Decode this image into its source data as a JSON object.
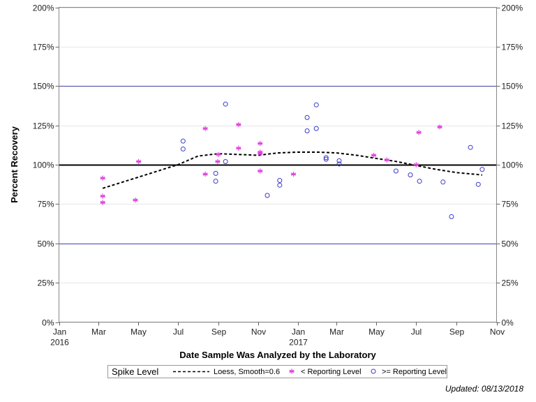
{
  "chart_data": {
    "type": "scatter",
    "xlabel": "Date Sample Was Analyzed by the Laboratory",
    "ylabel": "Percent Recovery",
    "ylim": [
      0,
      200
    ],
    "xlim": [
      "2016-01-01",
      "2017-11-01"
    ],
    "y_ticks": [
      {
        "value": 0,
        "label": "0%"
      },
      {
        "value": 25,
        "label": "25%"
      },
      {
        "value": 50,
        "label": "50%"
      },
      {
        "value": 75,
        "label": "75%"
      },
      {
        "value": 100,
        "label": "100%"
      },
      {
        "value": 125,
        "label": "125%"
      },
      {
        "value": 150,
        "label": "150%"
      },
      {
        "value": 175,
        "label": "175%"
      },
      {
        "value": 200,
        "label": "200%"
      }
    ],
    "x_ticks": [
      {
        "date": "2016-01-01",
        "label": "Jan",
        "year": "2016"
      },
      {
        "date": "2016-03-01",
        "label": "Mar"
      },
      {
        "date": "2016-05-01",
        "label": "May"
      },
      {
        "date": "2016-07-01",
        "label": "Jul"
      },
      {
        "date": "2016-09-01",
        "label": "Sep"
      },
      {
        "date": "2016-11-01",
        "label": "Nov"
      },
      {
        "date": "2017-01-01",
        "label": "Jan",
        "year": "2017"
      },
      {
        "date": "2017-03-01",
        "label": "Mar"
      },
      {
        "date": "2017-05-01",
        "label": "May"
      },
      {
        "date": "2017-07-01",
        "label": "Jul"
      },
      {
        "date": "2017-09-01",
        "label": "Sep"
      },
      {
        "date": "2017-11-01",
        "label": "Nov"
      }
    ],
    "grid": "horizontal",
    "reference_lines": [
      {
        "y": 100,
        "color": "#000000"
      },
      {
        "y": 150,
        "color": "#3f3fa8"
      },
      {
        "y": 50,
        "color": "#3f3fa8"
      }
    ],
    "series": [
      {
        "name": "< Reporting Level",
        "marker": "asterisk",
        "color": "#e040e0",
        "points": [
          {
            "x": "2016-03-08",
            "y": 91.5
          },
          {
            "x": "2016-03-08",
            "y": 80
          },
          {
            "x": "2016-03-08",
            "y": 76
          },
          {
            "x": "2016-04-27",
            "y": 77.5
          },
          {
            "x": "2016-05-02",
            "y": 102
          },
          {
            "x": "2016-08-12",
            "y": 123
          },
          {
            "x": "2016-08-12",
            "y": 94
          },
          {
            "x": "2016-08-31",
            "y": 102
          },
          {
            "x": "2016-09-01",
            "y": 106.5
          },
          {
            "x": "2016-10-02",
            "y": 125.5
          },
          {
            "x": "2016-10-02",
            "y": 110.5
          },
          {
            "x": "2016-11-04",
            "y": 113.5
          },
          {
            "x": "2016-11-04",
            "y": 108
          },
          {
            "x": "2016-11-04",
            "y": 107
          },
          {
            "x": "2016-11-04",
            "y": 96
          },
          {
            "x": "2016-12-25",
            "y": 94
          },
          {
            "x": "2017-04-27",
            "y": 106
          },
          {
            "x": "2017-05-17",
            "y": 103
          },
          {
            "x": "2017-07-01",
            "y": 100
          },
          {
            "x": "2017-07-05",
            "y": 120.5
          },
          {
            "x": "2017-08-06",
            "y": 124
          }
        ]
      },
      {
        "name": ">= Reporting Level",
        "marker": "circle",
        "color": "#3a3ac8",
        "points": [
          {
            "x": "2016-07-09",
            "y": 115
          },
          {
            "x": "2016-07-09",
            "y": 110
          },
          {
            "x": "2016-08-28",
            "y": 94.5
          },
          {
            "x": "2016-08-28",
            "y": 89.5
          },
          {
            "x": "2016-09-12",
            "y": 138.5
          },
          {
            "x": "2016-09-12",
            "y": 102
          },
          {
            "x": "2016-11-15",
            "y": 80.5
          },
          {
            "x": "2016-12-04",
            "y": 90
          },
          {
            "x": "2016-12-04",
            "y": 87
          },
          {
            "x": "2017-01-15",
            "y": 130
          },
          {
            "x": "2017-01-15",
            "y": 121.5
          },
          {
            "x": "2017-01-29",
            "y": 138
          },
          {
            "x": "2017-01-29",
            "y": 123
          },
          {
            "x": "2017-02-13",
            "y": 104.5
          },
          {
            "x": "2017-02-13",
            "y": 103.5
          },
          {
            "x": "2017-03-05",
            "y": 102.5
          },
          {
            "x": "2017-03-05",
            "y": 100.5
          },
          {
            "x": "2017-05-31",
            "y": 96
          },
          {
            "x": "2017-06-22",
            "y": 93.5
          },
          {
            "x": "2017-07-06",
            "y": 89.5
          },
          {
            "x": "2017-08-11",
            "y": 89
          },
          {
            "x": "2017-08-24",
            "y": 67
          },
          {
            "x": "2017-09-22",
            "y": 111
          },
          {
            "x": "2017-10-04",
            "y": 87.5
          },
          {
            "x": "2017-10-10",
            "y": 97
          }
        ]
      },
      {
        "name": "Loess, Smooth=0.6",
        "type": "line",
        "style": "dashed",
        "color": "#000000",
        "points": [
          {
            "x": "2016-03-08",
            "y": 85
          },
          {
            "x": "2016-05-01",
            "y": 92
          },
          {
            "x": "2016-07-01",
            "y": 100
          },
          {
            "x": "2016-08-01",
            "y": 105.5
          },
          {
            "x": "2016-09-01",
            "y": 107
          },
          {
            "x": "2016-10-01",
            "y": 106.5
          },
          {
            "x": "2016-11-01",
            "y": 106
          },
          {
            "x": "2016-12-01",
            "y": 107.5
          },
          {
            "x": "2017-01-01",
            "y": 108
          },
          {
            "x": "2017-02-01",
            "y": 108
          },
          {
            "x": "2017-03-01",
            "y": 107.5
          },
          {
            "x": "2017-04-01",
            "y": 106
          },
          {
            "x": "2017-05-01",
            "y": 104
          },
          {
            "x": "2017-06-01",
            "y": 102
          },
          {
            "x": "2017-07-01",
            "y": 99.5
          },
          {
            "x": "2017-08-01",
            "y": 97
          },
          {
            "x": "2017-09-01",
            "y": 95
          },
          {
            "x": "2017-10-10",
            "y": 93.5
          }
        ]
      }
    ],
    "legend": {
      "position": "bottom",
      "title": "Spike Level",
      "items": [
        {
          "label": "Loess, Smooth=0.6",
          "symbol": "dashed-line",
          "color": "#000000"
        },
        {
          "label": "< Reporting Level",
          "symbol": "asterisk",
          "color": "#e040e0"
        },
        {
          "label": ">= Reporting Level",
          "symbol": "circle",
          "color": "#3a3ac8"
        }
      ]
    },
    "footnote": "Updated: 08/13/2018"
  }
}
